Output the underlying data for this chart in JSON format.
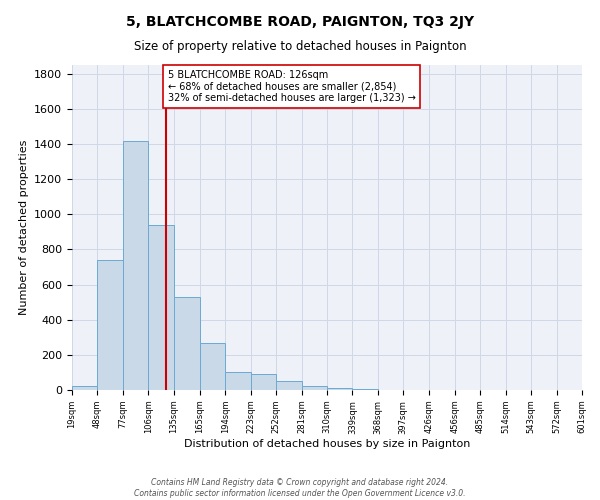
{
  "title": "5, BLATCHCOMBE ROAD, PAIGNTON, TQ3 2JY",
  "subtitle": "Size of property relative to detached houses in Paignton",
  "xlabel": "Distribution of detached houses by size in Paignton",
  "ylabel": "Number of detached properties",
  "bin_edges": [
    19,
    48,
    77,
    106,
    135,
    165,
    194,
    223,
    252,
    281,
    310,
    339,
    368,
    397,
    426,
    456,
    485,
    514,
    543,
    572,
    601
  ],
  "bar_heights": [
    20,
    740,
    1420,
    940,
    530,
    270,
    100,
    90,
    50,
    25,
    10,
    5,
    2,
    2,
    1,
    1,
    0,
    0,
    0,
    0
  ],
  "bar_color": "#c9d9e8",
  "bar_edge_color": "#6aaad4",
  "property_line_x": 126,
  "property_line_color": "#cc0000",
  "annotation_text": "5 BLATCHCOMBE ROAD: 126sqm\n← 68% of detached houses are smaller (2,854)\n32% of semi-detached houses are larger (1,323) →",
  "annotation_box_color": "#ffffff",
  "annotation_box_edge_color": "#cc0000",
  "ylim": [
    0,
    1850
  ],
  "yticks": [
    0,
    200,
    400,
    600,
    800,
    1000,
    1200,
    1400,
    1600,
    1800
  ],
  "tick_labels": [
    "19sqm",
    "48sqm",
    "77sqm",
    "106sqm",
    "135sqm",
    "165sqm",
    "194sqm",
    "223sqm",
    "252sqm",
    "281sqm",
    "310sqm",
    "339sqm",
    "368sqm",
    "397sqm",
    "426sqm",
    "456sqm",
    "485sqm",
    "514sqm",
    "543sqm",
    "572sqm",
    "601sqm"
  ],
  "grid_color": "#d0d8e8",
  "background_color": "#eef2f8",
  "footer_line1": "Contains HM Land Registry data © Crown copyright and database right 2024.",
  "footer_line2": "Contains public sector information licensed under the Open Government Licence v3.0."
}
